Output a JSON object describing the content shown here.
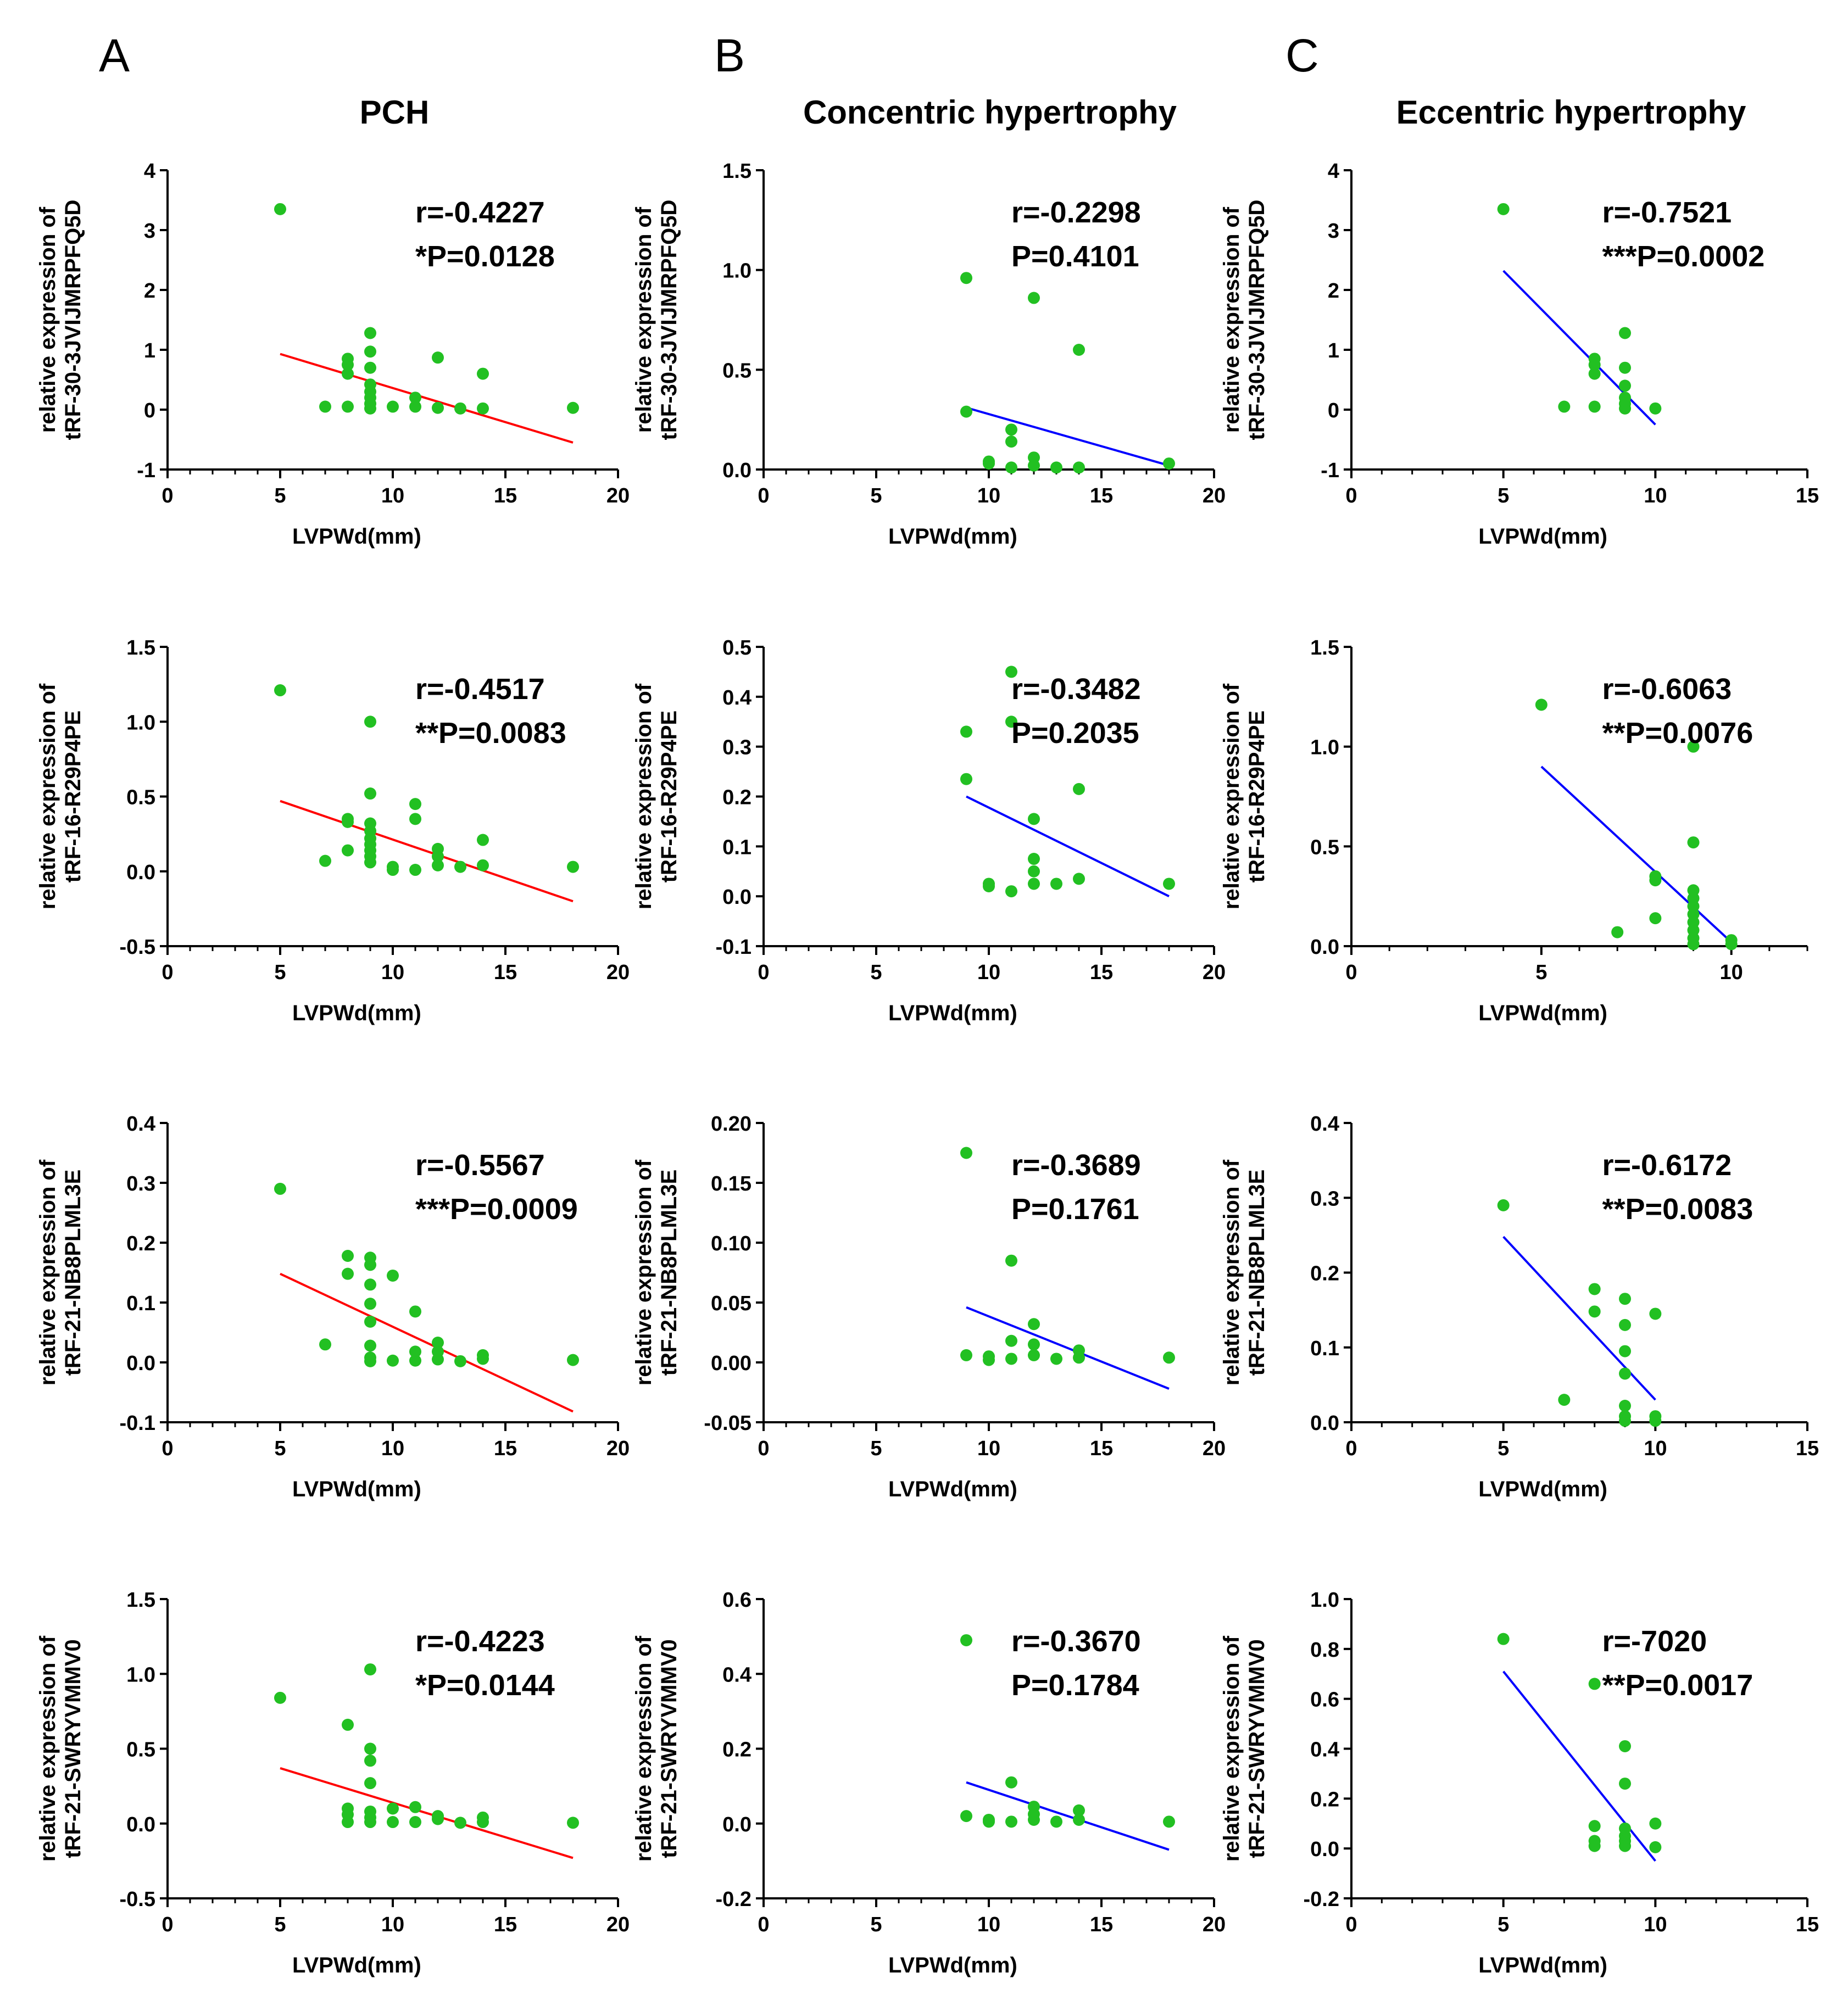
{
  "figure": {
    "columns": [
      {
        "letter": "A",
        "title": "PCH"
      },
      {
        "letter": "B",
        "title": "Concentric hypertrophy"
      },
      {
        "letter": "C",
        "title": "Eccentric hypertrophy"
      }
    ],
    "colors": {
      "points": "#22c022",
      "pch_fit": "#ff0000",
      "other_fit": "#0000ff",
      "axis": "#000000"
    }
  },
  "chart_data": [
    {
      "id": "A1",
      "type": "scatter",
      "column": "A",
      "row": 1,
      "xlabel": "LVPWd(mm)",
      "ylabel": [
        "relative expression of",
        "tRF-30-3JVIJMRPFQ5D"
      ],
      "xlim": [
        0,
        20
      ],
      "xticks": [
        0,
        5,
        10,
        15,
        20
      ],
      "ylim": [
        -1,
        4
      ],
      "yticks": [
        "-1",
        "0",
        "1",
        "2",
        "3",
        "4"
      ],
      "stat_r": "r=-0.4227",
      "stat_p": "*P=0.0128",
      "fit": {
        "x": [
          5,
          18
        ],
        "y": [
          0.93,
          -0.55
        ],
        "color": "#ff0000"
      },
      "points": [
        [
          5,
          3.35
        ],
        [
          7,
          0.05
        ],
        [
          8,
          0.85
        ],
        [
          8,
          0.75
        ],
        [
          8,
          0.6
        ],
        [
          8,
          0.05
        ],
        [
          9,
          1.28
        ],
        [
          9,
          0.97
        ],
        [
          9,
          0.7
        ],
        [
          9,
          0.42
        ],
        [
          9,
          0.3
        ],
        [
          9,
          0.2
        ],
        [
          9,
          0.1
        ],
        [
          9,
          0.02
        ],
        [
          10,
          0.05
        ],
        [
          11,
          0.2
        ],
        [
          11,
          0.05
        ],
        [
          12,
          0.87
        ],
        [
          12,
          0.03
        ],
        [
          13,
          0.02
        ],
        [
          14,
          0.6
        ],
        [
          14,
          0.02
        ],
        [
          18,
          0.03
        ]
      ]
    },
    {
      "id": "B1",
      "type": "scatter",
      "column": "B",
      "row": 1,
      "xlabel": "LVPWd(mm)",
      "ylabel": [
        "relative expression of",
        "tRF-30-3JVIJMRPFQ5D"
      ],
      "xlim": [
        0,
        20
      ],
      "xticks": [
        0,
        5,
        10,
        15,
        20
      ],
      "ylim": [
        0,
        1.5
      ],
      "yticks": [
        "0.0",
        "0.5",
        "1.0",
        "1.5"
      ],
      "stat_r": "r=-0.2298",
      "stat_p": "P=0.4101",
      "fit": {
        "x": [
          9,
          18
        ],
        "y": [
          0.31,
          0.02
        ],
        "color": "#0000ff"
      },
      "points": [
        [
          9,
          0.96
        ],
        [
          9,
          0.29
        ],
        [
          10,
          0.04
        ],
        [
          10,
          0.03
        ],
        [
          11,
          0.2
        ],
        [
          11,
          0.14
        ],
        [
          11,
          0.01
        ],
        [
          12,
          0.86
        ],
        [
          12,
          0.06
        ],
        [
          12,
          0.02
        ],
        [
          13,
          0.01
        ],
        [
          14,
          0.6
        ],
        [
          14,
          0.01
        ],
        [
          18,
          0.03
        ]
      ]
    },
    {
      "id": "C1",
      "type": "scatter",
      "column": "C",
      "row": 1,
      "xlabel": "LVPWd(mm)",
      "ylabel": [
        "relative expression of",
        "tRF-30-3JVIJMRPFQ5D"
      ],
      "xlim": [
        0,
        15
      ],
      "xticks": [
        0,
        5,
        10,
        15
      ],
      "ylim": [
        -1,
        4
      ],
      "yticks": [
        "-1",
        "0",
        "1",
        "2",
        "3",
        "4"
      ],
      "stat_r": "r=-0.7521",
      "stat_p": "***P=0.0002",
      "fit": {
        "x": [
          5,
          10
        ],
        "y": [
          2.32,
          -0.25
        ],
        "color": "#0000ff"
      },
      "points": [
        [
          5,
          3.35
        ],
        [
          7,
          0.05
        ],
        [
          8,
          0.85
        ],
        [
          8,
          0.75
        ],
        [
          8,
          0.6
        ],
        [
          8,
          0.05
        ],
        [
          9,
          1.28
        ],
        [
          9,
          0.7
        ],
        [
          9,
          0.4
        ],
        [
          9,
          0.2
        ],
        [
          9,
          0.1
        ],
        [
          9,
          0.02
        ],
        [
          10,
          0.02
        ]
      ]
    },
    {
      "id": "A2",
      "type": "scatter",
      "column": "A",
      "row": 2,
      "xlabel": "LVPWd(mm)",
      "ylabel": [
        "relative expression of",
        "tRF-16-R29P4PE"
      ],
      "xlim": [
        0,
        20
      ],
      "xticks": [
        0,
        5,
        10,
        15,
        20
      ],
      "ylim": [
        -0.5,
        1.5
      ],
      "yticks": [
        "-0.5",
        "0.0",
        "0.5",
        "1.0",
        "1.5"
      ],
      "stat_r": "r=-0.4517",
      "stat_p": "**P=0.0083",
      "fit": {
        "x": [
          5,
          18
        ],
        "y": [
          0.47,
          -0.2
        ],
        "color": "#ff0000"
      },
      "points": [
        [
          5,
          1.21
        ],
        [
          7,
          0.07
        ],
        [
          8,
          0.35
        ],
        [
          8,
          0.33
        ],
        [
          8,
          0.14
        ],
        [
          9,
          1.0
        ],
        [
          9,
          0.52
        ],
        [
          9,
          0.32
        ],
        [
          9,
          0.27
        ],
        [
          9,
          0.22
        ],
        [
          9,
          0.18
        ],
        [
          9,
          0.14
        ],
        [
          9,
          0.1
        ],
        [
          9,
          0.06
        ],
        [
          10,
          0.03
        ],
        [
          10,
          0.01
        ],
        [
          11,
          0.45
        ],
        [
          11,
          0.35
        ],
        [
          11,
          0.01
        ],
        [
          12,
          0.15
        ],
        [
          12,
          0.1
        ],
        [
          12,
          0.04
        ],
        [
          13,
          0.03
        ],
        [
          14,
          0.21
        ],
        [
          14,
          0.04
        ],
        [
          18,
          0.03
        ]
      ]
    },
    {
      "id": "B2",
      "type": "scatter",
      "column": "B",
      "row": 2,
      "xlabel": "LVPWd(mm)",
      "ylabel": [
        "relative expression of",
        "tRF-16-R29P4PE"
      ],
      "xlim": [
        0,
        20
      ],
      "xticks": [
        0,
        5,
        10,
        15,
        20
      ],
      "ylim": [
        -0.1,
        0.5
      ],
      "yticks": [
        "-0.1",
        "0.0",
        "0.1",
        "0.2",
        "0.3",
        "0.4",
        "0.5"
      ],
      "stat_r": "r=-0.3482",
      "stat_p": "P=0.2035",
      "fit": {
        "x": [
          9,
          18
        ],
        "y": [
          0.2,
          0.0
        ],
        "color": "#0000ff"
      },
      "points": [
        [
          9,
          0.33
        ],
        [
          9,
          0.235
        ],
        [
          10,
          0.025
        ],
        [
          10,
          0.02
        ],
        [
          11,
          0.45
        ],
        [
          11,
          0.35
        ],
        [
          11,
          0.01
        ],
        [
          12,
          0.155
        ],
        [
          12,
          0.075
        ],
        [
          12,
          0.05
        ],
        [
          12,
          0.025
        ],
        [
          13,
          0.025
        ],
        [
          14,
          0.215
        ],
        [
          14,
          0.035
        ],
        [
          18,
          0.025
        ]
      ]
    },
    {
      "id": "C2",
      "type": "scatter",
      "column": "C",
      "row": 2,
      "xlabel": "LVPWd(mm)",
      "ylabel": [
        "relative expression of",
        "tRF-16-R29P4PE"
      ],
      "xlim": [
        0,
        12
      ],
      "xticks": [
        0,
        5,
        10
      ],
      "ylim": [
        0,
        1.5
      ],
      "yticks": [
        "0.0",
        "0.5",
        "1.0",
        "1.5"
      ],
      "stat_r": "r=-0.6063",
      "stat_p": "**P=0.0076",
      "fit": {
        "x": [
          5,
          10
        ],
        "y": [
          0.9,
          0.02
        ],
        "color": "#0000ff"
      },
      "points": [
        [
          5,
          1.21
        ],
        [
          7,
          0.07
        ],
        [
          8,
          0.35
        ],
        [
          8,
          0.33
        ],
        [
          8,
          0.14
        ],
        [
          9,
          1.0
        ],
        [
          9,
          0.52
        ],
        [
          9,
          0.28
        ],
        [
          9,
          0.24
        ],
        [
          9,
          0.2
        ],
        [
          9,
          0.16
        ],
        [
          9,
          0.12
        ],
        [
          9,
          0.08
        ],
        [
          9,
          0.04
        ],
        [
          9,
          0.01
        ],
        [
          10,
          0.03
        ],
        [
          10,
          0.01
        ]
      ]
    },
    {
      "id": "A3",
      "type": "scatter",
      "column": "A",
      "row": 3,
      "xlabel": "LVPWd(mm)",
      "ylabel": [
        "relative expression of",
        "tRF-21-NB8PLML3E"
      ],
      "xlim": [
        0,
        20
      ],
      "xticks": [
        0,
        5,
        10,
        15,
        20
      ],
      "ylim": [
        -0.1,
        0.4
      ],
      "yticks": [
        "-0.1",
        "0.0",
        "0.1",
        "0.2",
        "0.3",
        "0.4"
      ],
      "stat_r": "r=-0.5567",
      "stat_p": "***P=0.0009",
      "fit": {
        "x": [
          5,
          18
        ],
        "y": [
          0.148,
          -0.082
        ],
        "color": "#ff0000"
      },
      "points": [
        [
          5,
          0.29
        ],
        [
          7,
          0.03
        ],
        [
          8,
          0.178
        ],
        [
          8,
          0.148
        ],
        [
          9,
          0.175
        ],
        [
          9,
          0.163
        ],
        [
          9,
          0.13
        ],
        [
          9,
          0.098
        ],
        [
          9,
          0.068
        ],
        [
          9,
          0.028
        ],
        [
          9,
          0.008
        ],
        [
          9,
          0.002
        ],
        [
          10,
          0.145
        ],
        [
          10,
          0.003
        ],
        [
          11,
          0.085
        ],
        [
          11,
          0.018
        ],
        [
          11,
          0.003
        ],
        [
          12,
          0.033
        ],
        [
          12,
          0.018
        ],
        [
          12,
          0.005
        ],
        [
          13,
          0.002
        ],
        [
          14,
          0.012
        ],
        [
          14,
          0.006
        ],
        [
          18,
          0.004
        ]
      ]
    },
    {
      "id": "B3",
      "type": "scatter",
      "column": "B",
      "row": 3,
      "xlabel": "LVPWd(mm)",
      "ylabel": [
        "relative expression of",
        "tRF-21-NB8PLML3E"
      ],
      "xlim": [
        0,
        20
      ],
      "xticks": [
        0,
        5,
        10,
        15,
        20
      ],
      "ylim": [
        -0.05,
        0.2
      ],
      "yticks": [
        "-0.05",
        "0.00",
        "0.05",
        "0.10",
        "0.15",
        "0.20"
      ],
      "stat_r": "r=-0.3689",
      "stat_p": "P=0.1761",
      "fit": {
        "x": [
          9,
          18
        ],
        "y": [
          0.046,
          -0.022
        ],
        "color": "#0000ff"
      },
      "points": [
        [
          9,
          0.175
        ],
        [
          9,
          0.006
        ],
        [
          10,
          0.005
        ],
        [
          10,
          0.002
        ],
        [
          11,
          0.085
        ],
        [
          11,
          0.018
        ],
        [
          11,
          0.003
        ],
        [
          12,
          0.032
        ],
        [
          12,
          0.015
        ],
        [
          12,
          0.006
        ],
        [
          13,
          0.003
        ],
        [
          14,
          0.01
        ],
        [
          14,
          0.004
        ],
        [
          18,
          0.004
        ]
      ]
    },
    {
      "id": "C3",
      "type": "scatter",
      "column": "C",
      "row": 3,
      "xlabel": "LVPWd(mm)",
      "ylabel": [
        "relative expression of",
        "tRF-21-NB8PLML3E"
      ],
      "xlim": [
        0,
        15
      ],
      "xticks": [
        0,
        5,
        10,
        15
      ],
      "ylim": [
        0,
        0.4
      ],
      "yticks": [
        "0.0",
        "0.1",
        "0.2",
        "0.3",
        "0.4"
      ],
      "stat_r": "r=-0.6172",
      "stat_p": "**P=0.0083",
      "fit": {
        "x": [
          5,
          10
        ],
        "y": [
          0.248,
          0.03
        ],
        "color": "#0000ff"
      },
      "points": [
        [
          5,
          0.29
        ],
        [
          7,
          0.03
        ],
        [
          8,
          0.178
        ],
        [
          8,
          0.148
        ],
        [
          9,
          0.165
        ],
        [
          9,
          0.13
        ],
        [
          9,
          0.095
        ],
        [
          9,
          0.065
        ],
        [
          9,
          0.022
        ],
        [
          9,
          0.008
        ],
        [
          9,
          0.002
        ],
        [
          10,
          0.145
        ],
        [
          10,
          0.008
        ],
        [
          10,
          0.002
        ]
      ]
    },
    {
      "id": "A4",
      "type": "scatter",
      "column": "A",
      "row": 4,
      "xlabel": "LVPWd(mm)",
      "ylabel": [
        "relative expression of",
        "tRF-21-SWRYVMMV0"
      ],
      "xlim": [
        0,
        20
      ],
      "xticks": [
        0,
        5,
        10,
        15,
        20
      ],
      "ylim": [
        -0.5,
        1.5
      ],
      "yticks": [
        "-0.5",
        "0.0",
        "0.5",
        "1.0",
        "1.5"
      ],
      "stat_r": "r=-0.4223",
      "stat_p": "*P=0.0144",
      "fit": {
        "x": [
          5,
          18
        ],
        "y": [
          0.37,
          -0.23
        ],
        "color": "#ff0000"
      },
      "points": [
        [
          5,
          0.84
        ],
        [
          8,
          0.66
        ],
        [
          8,
          0.1
        ],
        [
          8,
          0.06
        ],
        [
          8,
          0.01
        ],
        [
          9,
          1.03
        ],
        [
          9,
          0.5
        ],
        [
          9,
          0.42
        ],
        [
          9,
          0.27
        ],
        [
          9,
          0.08
        ],
        [
          9,
          0.04
        ],
        [
          9,
          0.01
        ],
        [
          10,
          0.1
        ],
        [
          10,
          0.01
        ],
        [
          11,
          0.11
        ],
        [
          11,
          0.01
        ],
        [
          12,
          0.05
        ],
        [
          12,
          0.03
        ],
        [
          13,
          0.005
        ],
        [
          14,
          0.04
        ],
        [
          14,
          0.01
        ],
        [
          18,
          0.005
        ]
      ]
    },
    {
      "id": "B4",
      "type": "scatter",
      "column": "B",
      "row": 4,
      "xlabel": "LVPWd(mm)",
      "ylabel": [
        "relative expression of",
        "tRF-21-SWRYVMMV0"
      ],
      "xlim": [
        0,
        20
      ],
      "xticks": [
        0,
        5,
        10,
        15,
        20
      ],
      "ylim": [
        -0.2,
        0.6
      ],
      "yticks": [
        "-0.2",
        "0.0",
        "0.2",
        "0.4",
        "0.6"
      ],
      "stat_r": "r=-0.3670",
      "stat_p": "P=0.1784",
      "fit": {
        "x": [
          9,
          18
        ],
        "y": [
          0.11,
          -0.07
        ],
        "color": "#0000ff"
      },
      "points": [
        [
          9,
          0.49
        ],
        [
          9,
          0.02
        ],
        [
          10,
          0.01
        ],
        [
          10,
          0.005
        ],
        [
          11,
          0.11
        ],
        [
          11,
          0.005
        ],
        [
          12,
          0.045
        ],
        [
          12,
          0.025
        ],
        [
          12,
          0.01
        ],
        [
          13,
          0.005
        ],
        [
          14,
          0.035
        ],
        [
          14,
          0.01
        ],
        [
          18,
          0.005
        ]
      ]
    },
    {
      "id": "C4",
      "type": "scatter",
      "column": "C",
      "row": 4,
      "xlabel": "LVPWd(mm)",
      "ylabel": [
        "relative expression of",
        "tRF-21-SWRYVMMV0"
      ],
      "xlim": [
        0,
        15
      ],
      "xticks": [
        0,
        5,
        10,
        15
      ],
      "ylim": [
        -0.2,
        1.0
      ],
      "yticks": [
        "-0.2",
        "0.0",
        "0.2",
        "0.4",
        "0.6",
        "0.8",
        "1.0"
      ],
      "stat_r": "r=-7020",
      "stat_p": "**P=0.0017",
      "fit": {
        "x": [
          5,
          10
        ],
        "y": [
          0.71,
          -0.05
        ],
        "color": "#0000ff"
      },
      "points": [
        [
          5,
          0.84
        ],
        [
          8,
          0.66
        ],
        [
          8,
          0.09
        ],
        [
          8,
          0.03
        ],
        [
          8,
          0.01
        ],
        [
          9,
          0.41
        ],
        [
          9,
          0.26
        ],
        [
          9,
          0.08
        ],
        [
          9,
          0.05
        ],
        [
          9,
          0.03
        ],
        [
          9,
          0.01
        ],
        [
          10,
          0.1
        ],
        [
          10,
          0.005
        ]
      ]
    }
  ]
}
